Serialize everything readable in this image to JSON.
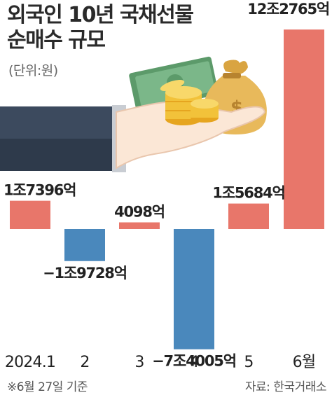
{
  "header": {
    "title_line1": "외국인 10년 국채선물",
    "title_line2": "순매수 규모",
    "unit": "(단위:원)"
  },
  "footer": {
    "note": "※6월 27일 기준",
    "source": "자료: 한국거래소"
  },
  "colors": {
    "positive": "#e8766a",
    "negative": "#4a88bc"
  },
  "illustration": {
    "icons": [
      "hand-icon",
      "cash-stack-icon",
      "coin-stack-icon",
      "money-bag-icon"
    ]
  },
  "chart_data": {
    "type": "bar",
    "title": "외국인 10년 국채선물 순매수 규모",
    "ylabel": "(단위:원)",
    "categories": [
      "2024.1",
      "2",
      "3",
      "4",
      "5",
      "6월"
    ],
    "values": [
      17396,
      -19728,
      4098,
      -74005,
      15684,
      122765
    ],
    "value_unit": "억원",
    "data_labels": [
      "1조7396억",
      "−1조9728억",
      "4098억",
      "−7조4005억",
      "1조5684억",
      "12조2765억"
    ],
    "ylim": [
      -80000,
      125000
    ],
    "grid": false,
    "legend": "none"
  }
}
